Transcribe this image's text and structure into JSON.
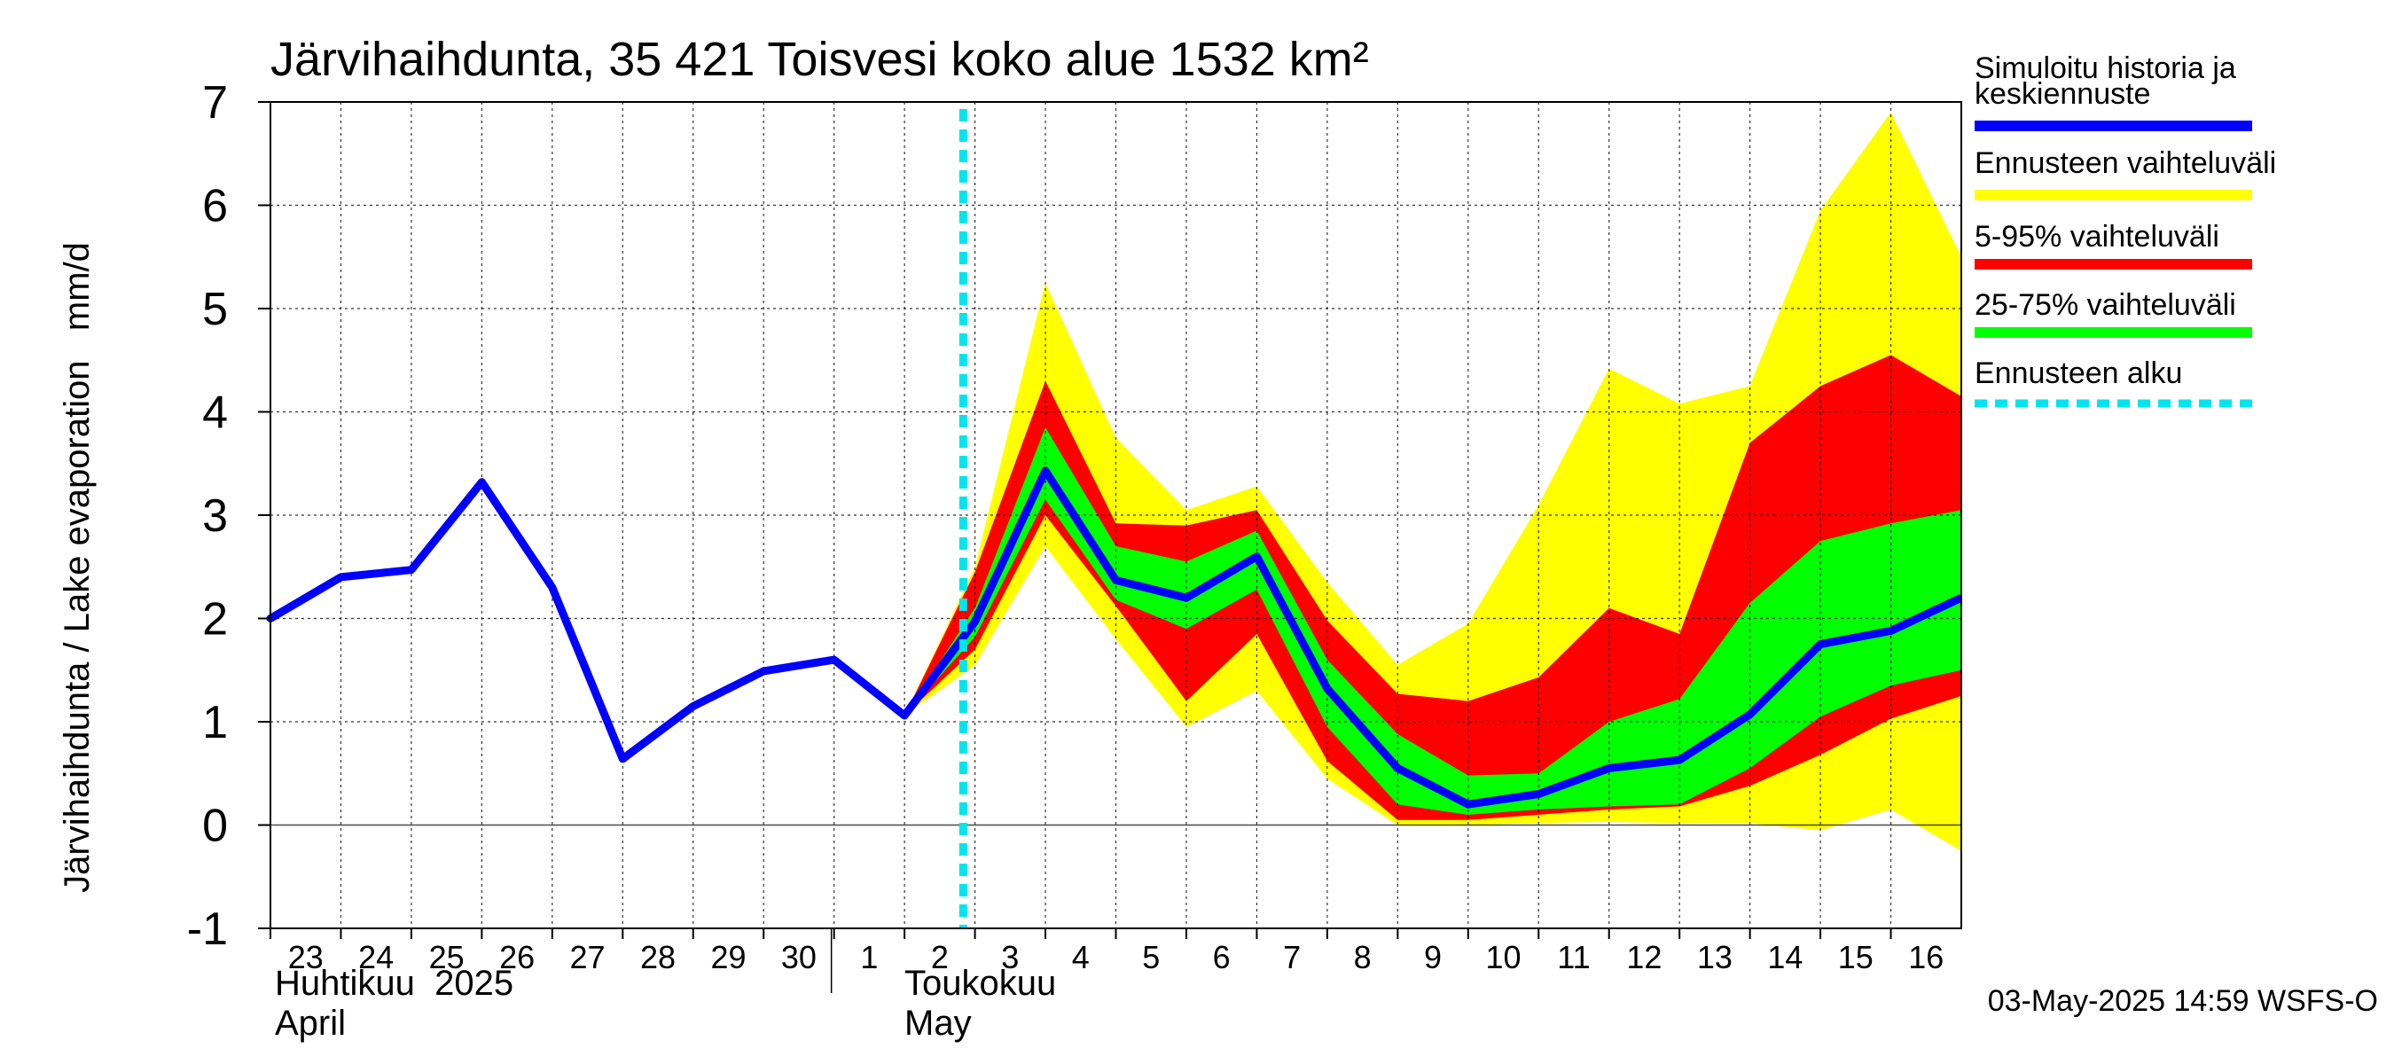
{
  "chart_data": {
    "type": "area",
    "title": "Järvihaihdunta, 35 421 Toisvesi koko alue 1532 km²",
    "ylabel": "Järvihaihdunta / Lake evaporation   mm/d",
    "ylim": [
      -1,
      7
    ],
    "yticks": [
      -1,
      0,
      1,
      2,
      3,
      4,
      5,
      6,
      7
    ],
    "xlim": [
      "2025-04-23",
      "2025-05-16"
    ],
    "x_tick_labels": [
      "23",
      "24",
      "25",
      "26",
      "27",
      "28",
      "29",
      "30",
      "1",
      "2",
      "3",
      "4",
      "5",
      "6",
      "7",
      "8",
      "9",
      "10",
      "11",
      "12",
      "13",
      "14",
      "15",
      "16"
    ],
    "month_labels": [
      {
        "fi": "Huhtikuu  2025",
        "en": "April"
      },
      {
        "fi": "Toukokuu",
        "en": "May"
      }
    ],
    "grid": true,
    "legend_position": "right",
    "forecast_start": "2025-05-02T20:00",
    "history": {
      "x": [
        "2025-04-23",
        "2025-04-24",
        "2025-04-25",
        "2025-04-26",
        "2025-04-27",
        "2025-04-28",
        "2025-04-29",
        "2025-04-30",
        "2025-05-01",
        "2025-05-02"
      ],
      "values": [
        2.0,
        2.4,
        2.47,
        3.32,
        2.3,
        0.64,
        1.15,
        1.49,
        1.6,
        1.06
      ]
    },
    "forecast": {
      "x": [
        "2025-05-02",
        "2025-05-03",
        "2025-05-04",
        "2025-05-05",
        "2025-05-06",
        "2025-05-07",
        "2025-05-08",
        "2025-05-09",
        "2025-05-10",
        "2025-05-11",
        "2025-05-12",
        "2025-05-13",
        "2025-05-14",
        "2025-05-15",
        "2025-05-16",
        "2025-05-17"
      ],
      "median": [
        1.06,
        1.97,
        3.43,
        2.37,
        2.2,
        2.6,
        1.32,
        0.55,
        0.2,
        0.3,
        0.55,
        0.63,
        1.07,
        1.75,
        1.88,
        2.2
      ],
      "min": [
        1.06,
        1.55,
        2.7,
        1.8,
        0.95,
        1.3,
        0.45,
        0.0,
        0.0,
        0.02,
        0.03,
        0.02,
        0.02,
        -0.05,
        0.15,
        -0.25
      ],
      "max": [
        1.06,
        2.5,
        5.25,
        3.75,
        3.05,
        3.28,
        2.35,
        1.55,
        1.95,
        3.1,
        4.42,
        4.08,
        4.25,
        5.95,
        6.9,
        5.5
      ],
      "p5": [
        1.06,
        1.7,
        3.0,
        2.12,
        1.2,
        1.85,
        0.62,
        0.05,
        0.05,
        0.1,
        0.15,
        0.18,
        0.38,
        0.68,
        1.03,
        1.25
      ],
      "p95": [
        1.06,
        2.45,
        4.3,
        2.92,
        2.9,
        3.05,
        1.98,
        1.27,
        1.2,
        1.43,
        2.1,
        1.85,
        3.7,
        4.25,
        4.55,
        4.15
      ],
      "p25": [
        1.06,
        1.82,
        3.15,
        2.18,
        1.9,
        2.28,
        0.95,
        0.2,
        0.1,
        0.15,
        0.18,
        0.2,
        0.55,
        1.05,
        1.35,
        1.5
      ],
      "p75": [
        1.06,
        2.1,
        3.85,
        2.7,
        2.55,
        2.85,
        1.6,
        0.88,
        0.48,
        0.5,
        1.0,
        1.22,
        2.15,
        2.75,
        2.92,
        3.05
      ]
    },
    "legend": [
      {
        "label": "Simuloitu historia ja keskiennuste",
        "color": "#0000ff",
        "style": "line"
      },
      {
        "label": "Ennusteen vaihteluväli",
        "color": "#ffff00",
        "style": "band"
      },
      {
        "label": "5-95% vaihteluväli",
        "color": "#ff0000",
        "style": "band"
      },
      {
        "label": "25-75% vaihteluväli",
        "color": "#00ff00",
        "style": "band"
      },
      {
        "label": "Ennusteen alku",
        "color": "#00e5ee",
        "style": "dashed"
      }
    ],
    "timestamp": "03-May-2025 14:59 WSFS-O"
  }
}
